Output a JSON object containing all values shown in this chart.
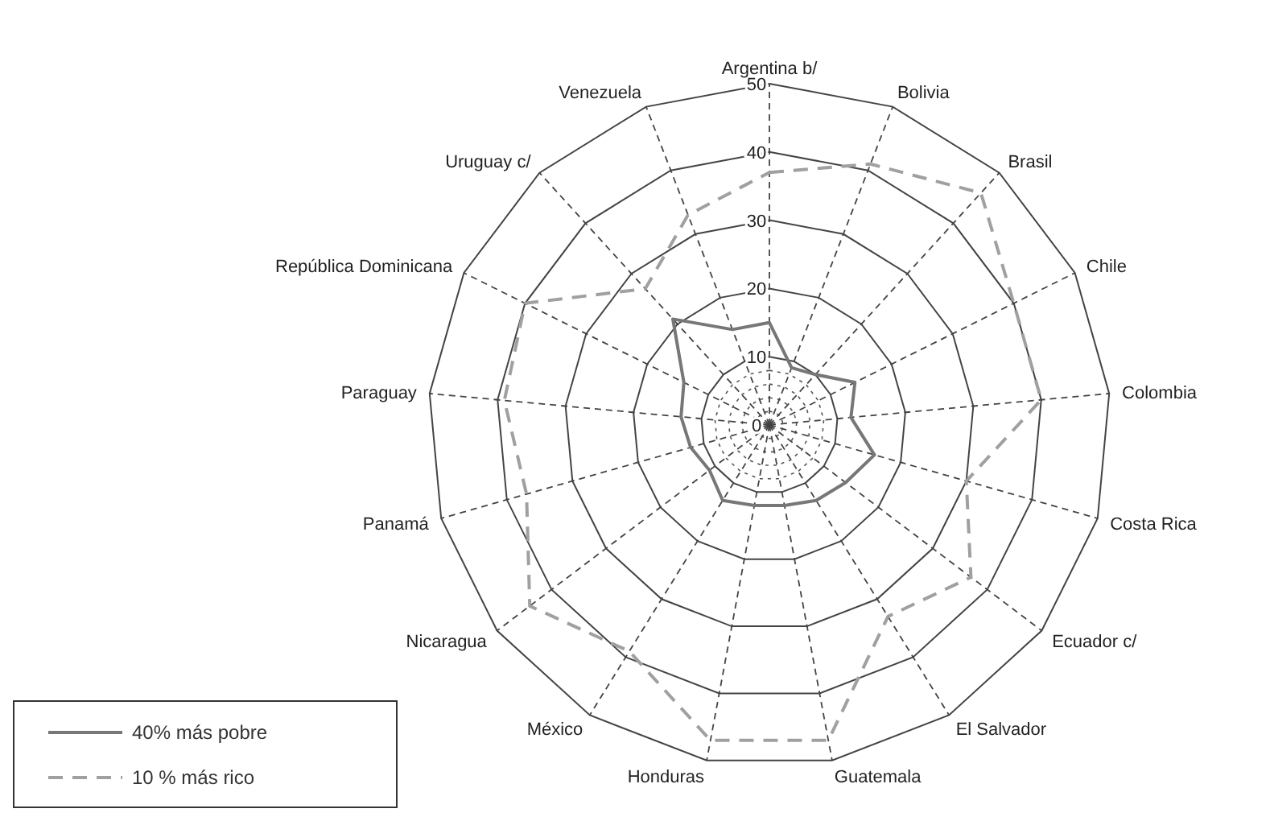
{
  "chart_data": {
    "type": "radar",
    "categories": [
      "Argentina b/",
      "Bolivia",
      "Brasil",
      "Chile",
      "Colombia",
      "Costa Rica",
      "Ecuador c/",
      "El Salvador",
      "Guatemala",
      "Honduras",
      "México",
      "Nicaragua",
      "Panamá",
      "Paraguay",
      "República Dominicana",
      "Uruguay c/",
      "Venezuela"
    ],
    "series": [
      {
        "name": "40% más pobre",
        "color": "#777777",
        "line_style": "solid",
        "values": [
          15,
          9,
          10,
          14,
          12,
          16,
          14,
          13,
          12,
          12,
          13,
          11,
          12,
          13,
          14,
          21,
          15
        ]
      },
      {
        "name": "10 % más rico",
        "color": "#a0a0a0",
        "line_style": "dashed",
        "values": [
          37,
          41,
          46,
          40,
          40,
          30,
          37,
          33,
          47,
          47,
          39,
          44,
          37,
          39,
          40,
          27,
          33
        ]
      }
    ],
    "ylim": [
      0,
      50
    ],
    "yticks": [
      0,
      10,
      20,
      30,
      40,
      50
    ],
    "grid": true,
    "legend": "bottom left",
    "marker": "none"
  }
}
